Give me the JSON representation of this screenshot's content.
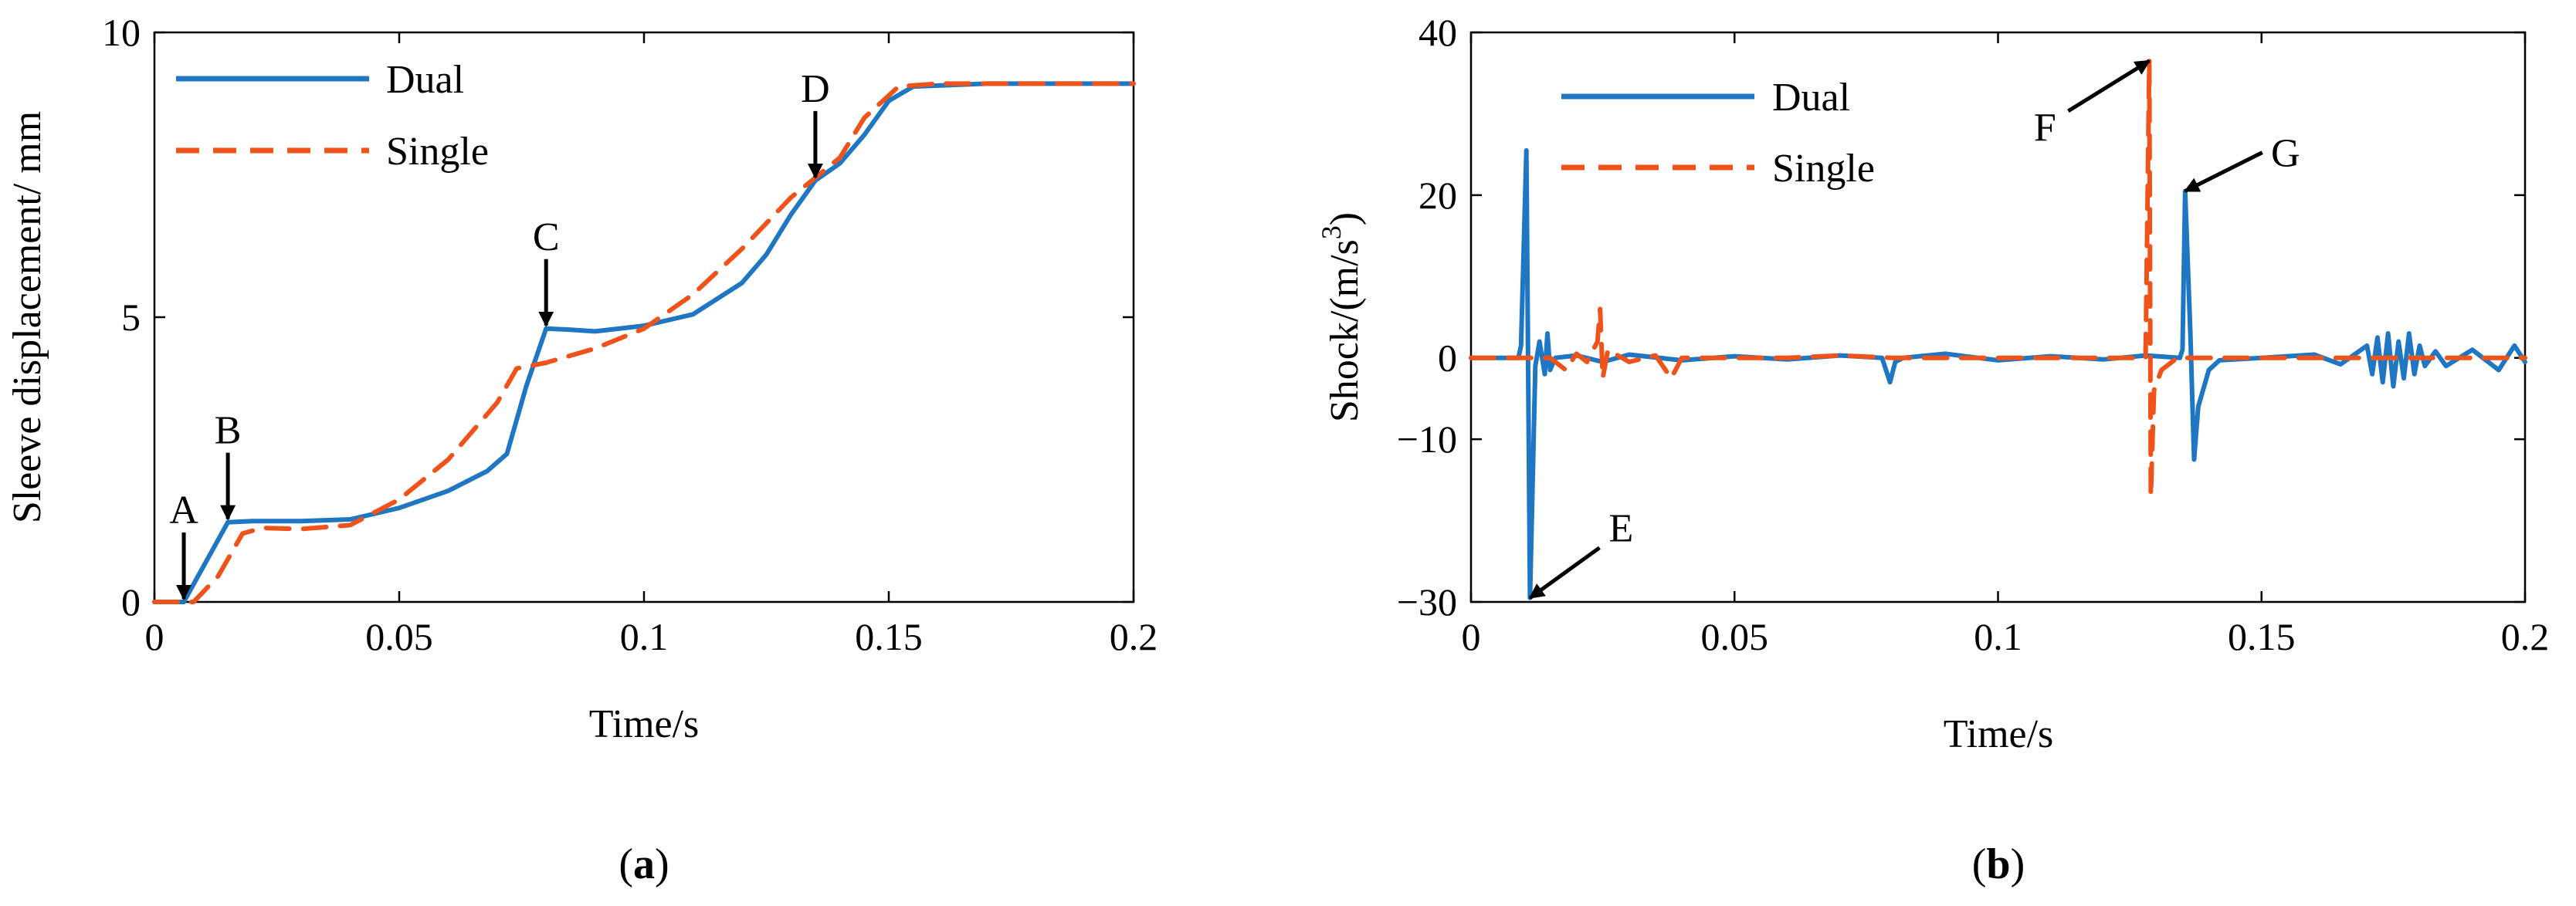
{
  "figure": {
    "colors": {
      "dual": "#1f77c4",
      "single": "#f0531a",
      "axis": "#000000"
    }
  },
  "chart_data": [
    {
      "id": "a",
      "type": "line",
      "caption_letter": "a",
      "xlabel": "Time/s",
      "ylabel": "Sleeve displacement/ mm",
      "xlim": [
        0,
        0.2
      ],
      "ylim": [
        0,
        10
      ],
      "xticks": [
        0,
        0.05,
        0.1,
        0.15,
        0.2
      ],
      "xtick_labels": [
        "0",
        "0.05",
        "0.1",
        "0.15",
        "0.2"
      ],
      "yticks": [
        0,
        5,
        10
      ],
      "ytick_labels": [
        "0",
        "5",
        "10"
      ],
      "legend": [
        "Dual",
        "Single"
      ],
      "series": [
        {
          "name": "Dual",
          "style": "solid",
          "points": [
            [
              0,
              0
            ],
            [
              0.006,
              0
            ],
            [
              0.015,
              1.4
            ],
            [
              0.02,
              1.42
            ],
            [
              0.03,
              1.42
            ],
            [
              0.04,
              1.45
            ],
            [
              0.05,
              1.65
            ],
            [
              0.06,
              1.95
            ],
            [
              0.068,
              2.3
            ],
            [
              0.072,
              2.6
            ],
            [
              0.076,
              3.8
            ],
            [
              0.08,
              4.8
            ],
            [
              0.085,
              4.78
            ],
            [
              0.09,
              4.75
            ],
            [
              0.1,
              4.85
            ],
            [
              0.11,
              5.05
            ],
            [
              0.12,
              5.6
            ],
            [
              0.125,
              6.1
            ],
            [
              0.13,
              6.8
            ],
            [
              0.135,
              7.4
            ],
            [
              0.14,
              7.7
            ],
            [
              0.145,
              8.2
            ],
            [
              0.15,
              8.8
            ],
            [
              0.155,
              9.05
            ],
            [
              0.17,
              9.1
            ],
            [
              0.2,
              9.1
            ]
          ]
        },
        {
          "name": "Single",
          "style": "dashed",
          "points": [
            [
              0,
              0
            ],
            [
              0.008,
              0
            ],
            [
              0.013,
              0.45
            ],
            [
              0.018,
              1.2
            ],
            [
              0.022,
              1.3
            ],
            [
              0.03,
              1.28
            ],
            [
              0.04,
              1.35
            ],
            [
              0.05,
              1.8
            ],
            [
              0.06,
              2.5
            ],
            [
              0.065,
              3.0
            ],
            [
              0.07,
              3.5
            ],
            [
              0.074,
              4.1
            ],
            [
              0.08,
              4.2
            ],
            [
              0.09,
              4.45
            ],
            [
              0.1,
              4.8
            ],
            [
              0.11,
              5.4
            ],
            [
              0.12,
              6.2
            ],
            [
              0.13,
              7.1
            ],
            [
              0.135,
              7.45
            ],
            [
              0.14,
              7.8
            ],
            [
              0.145,
              8.5
            ],
            [
              0.152,
              9.05
            ],
            [
              0.16,
              9.1
            ],
            [
              0.2,
              9.1
            ]
          ]
        }
      ],
      "annotations": [
        {
          "label": "A",
          "x": 0.006,
          "y": 0.0
        },
        {
          "label": "B",
          "x": 0.015,
          "y": 1.4
        },
        {
          "label": "C",
          "x": 0.08,
          "y": 4.8
        },
        {
          "label": "D",
          "x": 0.135,
          "y": 7.4
        }
      ]
    },
    {
      "id": "b",
      "type": "line",
      "caption_letter": "b",
      "xlabel": "Time/s",
      "ylabel_prefix": "Shock/(m/s",
      "ylabel_sup": "3",
      "ylabel_suffix": ")",
      "xlim": [
        0,
        0.2
      ],
      "ylim": [
        -30,
        40
      ],
      "xticks": [
        0,
        0.05,
        0.1,
        0.15,
        0.2
      ],
      "xtick_labels": [
        "0",
        "0.05",
        "0.1",
        "0.15",
        "0.2"
      ],
      "yticks": [
        -30,
        -10,
        0,
        20,
        40
      ],
      "ytick_labels": [
        "−30",
        "−10",
        "0",
        "20",
        "40"
      ],
      "legend": [
        "Dual",
        "Single"
      ],
      "series": [
        {
          "name": "Dual",
          "style": "solid",
          "points": [
            [
              0,
              0
            ],
            [
              0.009,
              0
            ],
            [
              0.0095,
              1.5
            ],
            [
              0.0105,
              25.5
            ],
            [
              0.0112,
              -29.5
            ],
            [
              0.0122,
              -1
            ],
            [
              0.013,
              2
            ],
            [
              0.014,
              -2
            ],
            [
              0.0145,
              3
            ],
            [
              0.015,
              -1.5
            ],
            [
              0.016,
              0
            ],
            [
              0.02,
              0.3
            ],
            [
              0.025,
              -0.5
            ],
            [
              0.03,
              0.4
            ],
            [
              0.04,
              -0.3
            ],
            [
              0.05,
              0.2
            ],
            [
              0.06,
              -0.2
            ],
            [
              0.07,
              0.3
            ],
            [
              0.078,
              0
            ],
            [
              0.0795,
              -3
            ],
            [
              0.0805,
              -0.5
            ],
            [
              0.082,
              0
            ],
            [
              0.09,
              0.5
            ],
            [
              0.1,
              -0.3
            ],
            [
              0.11,
              0.2
            ],
            [
              0.12,
              -0.2
            ],
            [
              0.128,
              0.3
            ],
            [
              0.1345,
              0
            ],
            [
              0.135,
              1
            ],
            [
              0.1355,
              20.5
            ],
            [
              0.1365,
              3
            ],
            [
              0.1372,
              -12.5
            ],
            [
              0.138,
              -6
            ],
            [
              0.14,
              -1.5
            ],
            [
              0.142,
              -0.3
            ],
            [
              0.15,
              0
            ],
            [
              0.16,
              0.4
            ],
            [
              0.165,
              -0.8
            ],
            [
              0.17,
              1.5
            ],
            [
              0.171,
              -2
            ],
            [
              0.172,
              2.5
            ],
            [
              0.173,
              -3
            ],
            [
              0.174,
              3
            ],
            [
              0.175,
              -3.5
            ],
            [
              0.176,
              2
            ],
            [
              0.177,
              -2.5
            ],
            [
              0.178,
              3
            ],
            [
              0.179,
              -2
            ],
            [
              0.18,
              1.5
            ],
            [
              0.181,
              -1
            ],
            [
              0.183,
              0.8
            ],
            [
              0.185,
              -1
            ],
            [
              0.19,
              1
            ],
            [
              0.195,
              -1.5
            ],
            [
              0.198,
              1.5
            ],
            [
              0.2,
              -0.5
            ]
          ]
        },
        {
          "name": "Single",
          "style": "dashed",
          "points": [
            [
              0,
              0
            ],
            [
              0.015,
              0
            ],
            [
              0.018,
              -1.5
            ],
            [
              0.02,
              0.5
            ],
            [
              0.022,
              -0.5
            ],
            [
              0.024,
              2
            ],
            [
              0.0245,
              6
            ],
            [
              0.025,
              -2.5
            ],
            [
              0.026,
              1
            ],
            [
              0.03,
              -0.5
            ],
            [
              0.035,
              0.3
            ],
            [
              0.038,
              -2.5
            ],
            [
              0.04,
              0
            ],
            [
              0.06,
              0
            ],
            [
              0.07,
              0.3
            ],
            [
              0.08,
              0
            ],
            [
              0.1,
              0
            ],
            [
              0.12,
              0
            ],
            [
              0.128,
              0
            ],
            [
              0.1287,
              36.5
            ],
            [
              0.129,
              -17
            ],
            [
              0.1296,
              -4
            ],
            [
              0.131,
              -1.5
            ],
            [
              0.134,
              0
            ],
            [
              0.2,
              0
            ]
          ]
        }
      ],
      "annotations": [
        {
          "label": "E",
          "x": 0.0112,
          "y": -29.5
        },
        {
          "label": "F",
          "x": 0.1287,
          "y": 36.5
        },
        {
          "label": "G",
          "x": 0.1355,
          "y": 20.5
        }
      ]
    }
  ]
}
